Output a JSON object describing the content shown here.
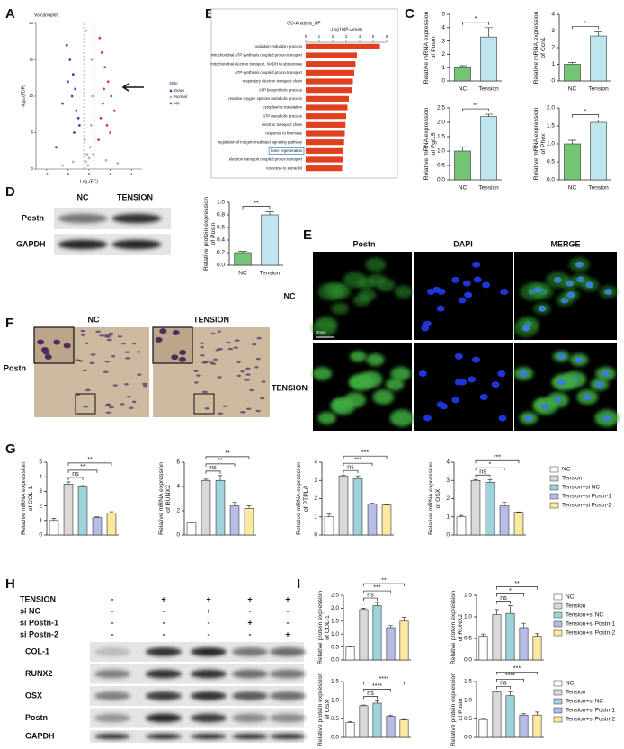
{
  "panel_labels": [
    "A",
    "B",
    "C",
    "D",
    "E",
    "F",
    "G",
    "H",
    "I"
  ],
  "chart_data": [
    {
      "type": "scatter",
      "title": "Volcanoplot",
      "xlabel": "Log₂(FC)",
      "ylabel": "-log₁₀(FDR)",
      "xlim": [
        -5,
        5
      ],
      "xticks": [
        -4,
        -2,
        0,
        2,
        4
      ],
      "ylim": [
        0,
        20
      ],
      "yticks": [
        0,
        5,
        10,
        15,
        20
      ],
      "vlines": [
        -0.5,
        0.5
      ],
      "hline": 3,
      "legend_title": "Style",
      "series": [
        {
          "name": "Down",
          "color": "#3347c9",
          "x": [
            -2.1,
            -1.8,
            -1.5,
            -1.3,
            -2.5,
            -1.2,
            -1.0,
            -1.6,
            -2.0,
            -0.9,
            -1.4,
            -3.1
          ],
          "y": [
            17,
            15,
            13,
            11,
            9,
            8,
            7,
            10,
            12,
            6,
            5,
            3
          ]
        },
        {
          "name": "Normal",
          "color": "#b5b5b5",
          "x": [
            -0.3,
            -0.2,
            0.1,
            0.2,
            0.3,
            -0.1,
            0,
            0.25,
            -0.25,
            -1.5,
            1.6,
            -2.5,
            2.7,
            -0.4,
            0.4
          ],
          "y": [
            1,
            2,
            3,
            6,
            10,
            0.5,
            1.5,
            15,
            19,
            1,
            1.2,
            0.5,
            0.8,
            4,
            2
          ]
        },
        {
          "name": "Up",
          "color": "#d63a3a",
          "x": [
            1.0,
            1.2,
            1.5,
            1.8,
            2.1,
            1.3,
            2.4,
            1.1,
            1.7,
            2.0,
            0.9,
            1.4
          ],
          "y": [
            18,
            16,
            14,
            12,
            10,
            9,
            8,
            7,
            6,
            5,
            4,
            11
          ]
        }
      ]
    },
    {
      "type": "barh",
      "title": "GO-Analysis_BP",
      "xlabel": "-Log10(P-value)",
      "xlim": [
        0,
        6
      ],
      "xticks": [
        0,
        1,
        2,
        3,
        4,
        5,
        6
      ],
      "categories": [
        "oxidation-reduction process",
        "mitochondrial ATP synthesis coupled proton transport",
        "mitochondrial electron transport, NADH to ubiquinone",
        "ATP synthesis coupled proton transport",
        "respiratory electron transport chain",
        "ATP biosynthetic process",
        "reactive oxygen species metabolic process",
        "cytoplasmic translation",
        "ATP metabolic process",
        "electron transport chain",
        "response to hormone",
        "regulation of integrin-mediated signaling pathway",
        "bone regeneration",
        "electron transport coupled proton transport",
        "response to estradiol"
      ],
      "values": [
        5.5,
        3.8,
        3.7,
        3.6,
        3.5,
        3.4,
        3.2,
        3.1,
        3.0,
        2.95,
        2.9,
        2.85,
        2.8,
        2.75,
        2.7
      ],
      "color": "#e0401f",
      "boxed": 12
    },
    {
      "type": "bar",
      "ylabel": [
        "Relative mRNA expression",
        "of Postn"
      ],
      "categories": [
        "NC",
        "Tension"
      ],
      "colors": [
        "#74c476",
        "#bfe6ee"
      ],
      "values": [
        1.0,
        3.3
      ],
      "errors": [
        0.15,
        0.7
      ],
      "ylim": [
        0,
        5
      ],
      "yticks": [
        0,
        1,
        2,
        3,
        4,
        5
      ],
      "significance": "*"
    },
    {
      "type": "bar",
      "ylabel": [
        "Relative mRNA expression",
        "of Ccn1"
      ],
      "categories": [
        "NC",
        "Tension"
      ],
      "colors": [
        "#74c476",
        "#bfe6ee"
      ],
      "values": [
        1.0,
        2.7
      ],
      "errors": [
        0.1,
        0.25
      ],
      "ylim": [
        0,
        4
      ],
      "yticks": [
        0,
        1,
        2,
        3,
        4
      ],
      "significance": "*"
    },
    {
      "type": "bar",
      "ylabel": [
        "Relative mRNA expression",
        "of Fgf15"
      ],
      "categories": [
        "NC",
        "Tension"
      ],
      "colors": [
        "#74c476",
        "#bfe6ee"
      ],
      "values": [
        1.0,
        2.2
      ],
      "errors": [
        0.15,
        0.08
      ],
      "ylim": [
        0,
        2.5
      ],
      "yticks": [
        {
          "value": 0,
          "label": "0.0"
        },
        0.5,
        {
          "value": 1,
          "label": "1.0"
        },
        1.5,
        {
          "value": 2,
          "label": "2.0"
        },
        2.5
      ],
      "significance": "**"
    },
    {
      "type": "bar",
      "ylabel": [
        "Relative mRNA expression",
        "of Phex"
      ],
      "categories": [
        "NC",
        "Tension"
      ],
      "colors": [
        "#74c476",
        "#bfe6ee"
      ],
      "values": [
        1.0,
        1.6
      ],
      "errors": [
        0.1,
        0.06
      ],
      "ylim": [
        0,
        2
      ],
      "yticks": [
        {
          "value": 0,
          "label": "0.0"
        },
        0.5,
        {
          "value": 1,
          "label": "1.0"
        },
        1.5,
        {
          "value": 2,
          "label": "2.0"
        }
      ],
      "significance": "*"
    },
    {
      "type": "bar",
      "ylabel": [
        "Relative protein expression",
        "of Postn"
      ],
      "categories": [
        "NC",
        "Tension"
      ],
      "colors": [
        "#74c476",
        "#bfe6ee"
      ],
      "values": [
        0.2,
        0.8
      ],
      "errors": [
        0.02,
        0.05
      ],
      "ylim": [
        0,
        1
      ],
      "yticks": [
        {
          "value": 0,
          "label": "0.0"
        },
        0.2,
        0.4,
        0.6,
        0.8,
        {
          "value": 1,
          "label": "1.0"
        }
      ],
      "significance": "**"
    },
    {
      "type": "grouped-bar",
      "legend": [
        {
          "name": "NC",
          "color": "#ffffff"
        },
        {
          "name": "Tension",
          "color": "#d9d9d9"
        },
        {
          "name": "Tension+si NC",
          "color": "#9fd3dc"
        },
        {
          "name": "Tension+si Postn-1",
          "color": "#b8bde8"
        },
        {
          "name": "Tension+si Postn-2",
          "color": "#fbe9a0"
        }
      ],
      "charts": [
        {
          "ylabel": [
            "Relative mRNA expression",
            "of COL-1"
          ],
          "values": [
            1.0,
            3.5,
            3.3,
            1.2,
            1.5
          ],
          "errors": [
            0.15,
            0.15,
            0.1,
            0.05,
            0.1
          ],
          "ylim": [
            0,
            5
          ],
          "yticks": [
            0,
            1,
            2,
            3,
            4,
            5
          ],
          "comparisons": [
            "ns",
            "**",
            "**"
          ]
        },
        {
          "ylabel": [
            "Relative mRNA expression",
            "of RUNX2"
          ],
          "values": [
            1.0,
            4.5,
            4.5,
            2.4,
            2.2
          ],
          "errors": [
            0.05,
            0.1,
            0.4,
            0.3,
            0.2
          ],
          "ylim": [
            0,
            6
          ],
          "yticks": [
            0,
            2,
            4,
            6
          ],
          "comparisons": [
            "ns",
            "**",
            "**"
          ]
        },
        {
          "ylabel": [
            "Relative mRNA expression",
            "of PTPLA"
          ],
          "values": [
            1.0,
            3.25,
            3.1,
            1.7,
            1.65
          ],
          "errors": [
            0.15,
            0.05,
            0.15,
            0.05,
            0.02
          ],
          "ylim": [
            0,
            4
          ],
          "yticks": [
            0,
            1,
            2,
            3,
            4
          ],
          "comparisons": [
            "ns",
            "***",
            "***"
          ]
        },
        {
          "ylabel": [
            "Relative mRNA expression",
            "of OSX"
          ],
          "values": [
            1.0,
            3.0,
            2.9,
            1.6,
            1.25
          ],
          "errors": [
            0.08,
            0.05,
            0.15,
            0.2,
            0.02
          ],
          "ylim": [
            0,
            4
          ],
          "yticks": [
            0,
            1,
            2,
            3,
            4
          ],
          "comparisons": [
            "ns",
            "*",
            "***"
          ]
        }
      ]
    },
    {
      "type": "grouped-bar",
      "legend": [
        {
          "name": "NC",
          "color": "#ffffff"
        },
        {
          "name": "Tension",
          "color": "#d9d9d9"
        },
        {
          "name": "Tension+si NC",
          "color": "#9fd3dc"
        },
        {
          "name": "Tension+si Postn-1",
          "color": "#b8bde8"
        },
        {
          "name": "Tension+si Postn-2",
          "color": "#fbe9a0"
        }
      ],
      "legend_per_row": true,
      "charts": [
        {
          "ylabel": [
            "Relative protein expression",
            "of COL-1"
          ],
          "values": [
            0.5,
            1.95,
            2.1,
            1.25,
            1.5
          ],
          "errors": [
            0.02,
            0.05,
            0.12,
            0.08,
            0.15
          ],
          "ylim": [
            0,
            2.5
          ],
          "yticks": [
            {
              "value": 0,
              "label": "0.0"
            },
            0.5,
            {
              "value": 1,
              "label": "1.0"
            },
            1.5,
            {
              "value": 2,
              "label": "2.0"
            },
            2.5
          ],
          "comparisons": [
            "ns",
            "***",
            "**"
          ]
        },
        {
          "ylabel": [
            "Relative protein expression",
            "of RUNX2"
          ],
          "values": [
            0.55,
            1.05,
            1.08,
            0.75,
            0.55
          ],
          "errors": [
            0.05,
            0.12,
            0.18,
            0.1,
            0.06
          ],
          "ylim": [
            0,
            1.5
          ],
          "yticks": [
            {
              "value": 0,
              "label": "0.0"
            },
            0.5,
            {
              "value": 1,
              "label": "1.0"
            },
            1.5
          ],
          "comparisons": [
            "ns",
            "*",
            "**"
          ]
        },
        {
          "ylabel": [
            "Relative protein expression",
            "of OSX"
          ],
          "values": [
            0.4,
            0.85,
            0.92,
            0.57,
            0.47
          ],
          "errors": [
            0.02,
            0.02,
            0.06,
            0.03,
            0.01
          ],
          "ylim": [
            0,
            1.5
          ],
          "yticks": [
            {
              "value": 0,
              "label": "0.0"
            },
            0.5,
            {
              "value": 1,
              "label": "1.0"
            },
            1.5
          ],
          "comparisons": [
            "ns",
            "****",
            "****"
          ]
        },
        {
          "ylabel": [
            "Relative protein expression",
            "of Postn"
          ],
          "values": [
            0.48,
            1.22,
            1.12,
            0.6,
            0.6
          ],
          "errors": [
            0.03,
            0.03,
            0.1,
            0.04,
            0.08
          ],
          "ylim": [
            0,
            1.5
          ],
          "yticks": [
            {
              "value": 0,
              "label": "0.0"
            },
            0.5,
            {
              "value": 1,
              "label": "1.0"
            },
            1.5
          ],
          "comparisons": [
            "ns",
            "****",
            "***"
          ]
        }
      ]
    }
  ],
  "images": {
    "D": {
      "columns": [
        "NC",
        "TENSION"
      ],
      "rows": [
        "Postn",
        "GAPDH"
      ]
    },
    "E": {
      "columns": [
        "Postn",
        "DAPI",
        "MERGE"
      ],
      "rows": [
        "NC",
        "TENSION"
      ],
      "scale": "20μm"
    },
    "F": {
      "columns": [
        "NC",
        "TENSION"
      ],
      "row": "Postn"
    },
    "H": {
      "conditions": [
        {
          "name": "TENSION",
          "signs": [
            "-",
            "+",
            "+",
            "+",
            "+"
          ]
        },
        {
          "name": "si NC",
          "signs": [
            "-",
            "-",
            "+",
            "-",
            "-"
          ]
        },
        {
          "name": "si Postn-1",
          "signs": [
            "-",
            "-",
            "-",
            "+",
            "-"
          ]
        },
        {
          "name": "si Postn-2",
          "signs": [
            "-",
            "-",
            "-",
            "-",
            "+"
          ]
        }
      ],
      "rows": [
        "COL-1",
        "RUNX2",
        "OSX",
        "Postn",
        "GAPDH"
      ]
    }
  }
}
